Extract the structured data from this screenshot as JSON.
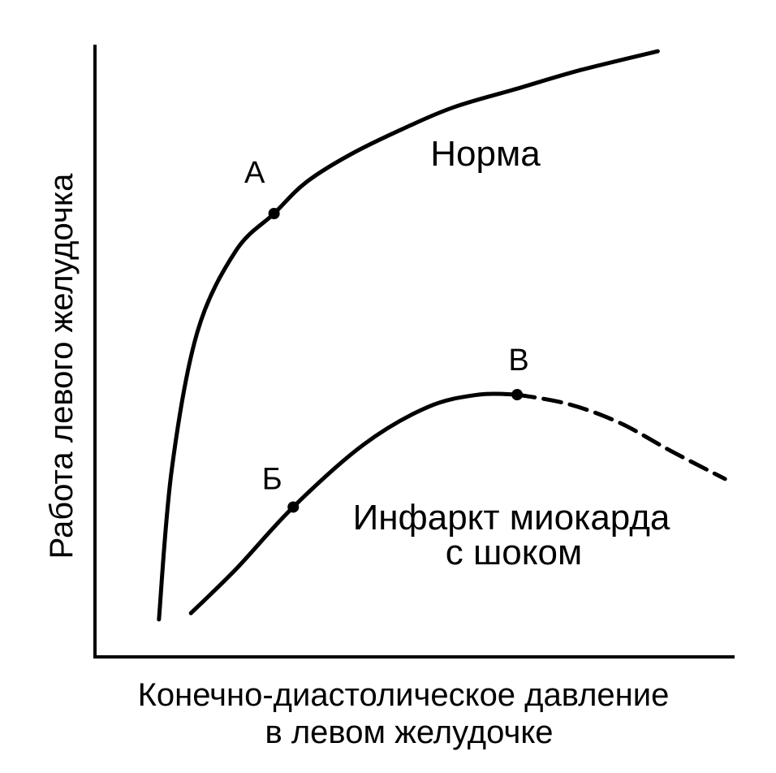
{
  "chart_data": {
    "type": "line",
    "title": "",
    "xlabel_lines": [
      "Конечно-диастолическое давление",
      "в левом желудочке"
    ],
    "ylabel": "Работа левого желудочка",
    "xlim": [
      0,
      100
    ],
    "ylim": [
      0,
      100
    ],
    "axis_ticks": false,
    "grid": false,
    "series": [
      {
        "name": "Норма",
        "style": "solid",
        "x": [
          10,
          12,
          16,
          22,
          28,
          33,
          40,
          48,
          56,
          66,
          76,
          88
        ],
        "y": [
          6,
          30,
          52,
          65,
          71,
          76,
          80.5,
          84.5,
          88,
          91,
          94,
          97
        ]
      },
      {
        "name_lines": [
          "Инфаркт миокарда",
          "с шоком"
        ],
        "style": "solid-then-dashed",
        "dash_from_x": 66,
        "x": [
          15,
          22,
          31,
          42,
          52,
          60,
          66,
          74,
          82,
          90,
          98.5
        ],
        "y": [
          7,
          14,
          24,
          34,
          40,
          42,
          42,
          40.5,
          37.5,
          33,
          28.5
        ]
      }
    ],
    "points": [
      {
        "label": "А",
        "x": 28,
        "y": 71
      },
      {
        "label": "Б",
        "x": 31,
        "y": 24
      },
      {
        "label": "В",
        "x": 66,
        "y": 42
      }
    ],
    "colors": {
      "ink": "#000000",
      "background": "#ffffff"
    }
  }
}
